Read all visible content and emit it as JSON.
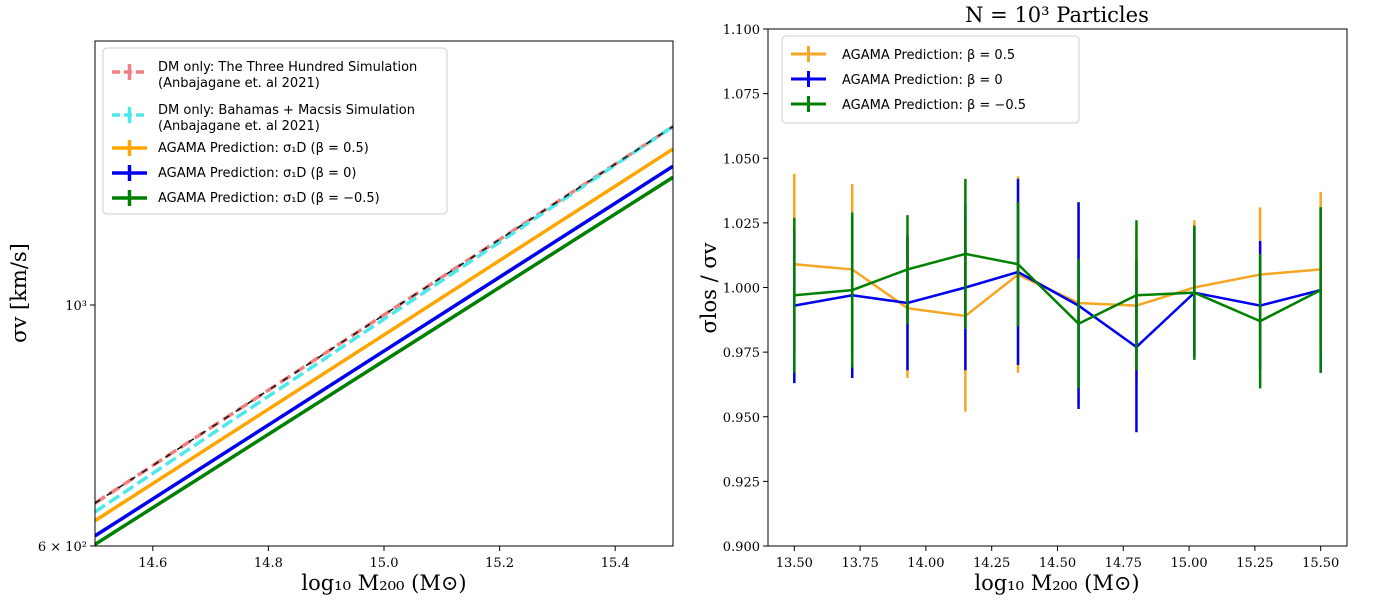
{
  "chart_data": [
    {
      "type": "line",
      "title": "",
      "xlabel": "log₁₀ M₂₀₀ (M⊙)",
      "ylabel": "σv [km/s]",
      "xlim": [
        14.5,
        15.5
      ],
      "ylim": [
        600,
        1750
      ],
      "yscale": "log",
      "xticks": [
        "14.6",
        "14.8",
        "15.0",
        "15.2",
        "15.4"
      ],
      "yticks": [
        {
          "value": 600,
          "label": "6 × 10²"
        },
        {
          "value": 1000,
          "label": "10³"
        }
      ],
      "grid": false,
      "legend_position": "top-left",
      "series": [
        {
          "name": "DM only: The Three Hundred Simulation",
          "name2": "(Anbajagane et. al 2021)",
          "x": [
            14.5,
            15.5
          ],
          "y": [
            657,
            1460
          ],
          "color": "#f08080",
          "style": "dashed"
        },
        {
          "name": "DM only: Bahamas + Macsis Simulation",
          "name2": "(Anbajagane et. al 2021)",
          "x": [
            14.5,
            15.5
          ],
          "y": [
            645,
            1460
          ],
          "color": "#4ee8e8",
          "style": "dashed"
        },
        {
          "name": "AGAMA Prediction: σ₁D (β = 0.5)",
          "x": [
            14.5,
            15.5
          ],
          "y": [
            633,
            1392
          ],
          "color": "#ffa500",
          "style": "solid"
        },
        {
          "name": "AGAMA Prediction: σ₁D (β = 0)",
          "x": [
            14.5,
            15.5
          ],
          "y": [
            613,
            1342
          ],
          "color": "#0000ee",
          "style": "solid"
        },
        {
          "name": "AGAMA Prediction: σ₁D (β = −0.5)",
          "x": [
            14.5,
            15.5
          ],
          "y": [
            602,
            1311
          ],
          "color": "#008000",
          "style": "solid"
        }
      ]
    },
    {
      "type": "line",
      "title": "N = 10³ Particles",
      "xlabel": "log₁₀ M₂₀₀ (M⊙)",
      "ylabel": "σlos / σv",
      "xlim": [
        13.4,
        15.6
      ],
      "ylim": [
        0.9,
        1.1
      ],
      "xticks": [
        "13.50",
        "13.75",
        "14.00",
        "14.25",
        "14.50",
        "14.75",
        "15.00",
        "15.25",
        "15.50"
      ],
      "yticks": [
        "0.900",
        "0.925",
        "0.950",
        "0.975",
        "1.000",
        "1.025",
        "1.050",
        "1.075",
        "1.100"
      ],
      "grid": false,
      "legend_position": "top-left",
      "x": [
        13.5,
        13.72,
        13.93,
        14.15,
        14.35,
        14.58,
        14.8,
        15.02,
        15.27,
        15.5
      ],
      "series": [
        {
          "name": "AGAMA Prediction: β = 0.5",
          "color": "#f5a623",
          "y": [
            1.009,
            1.007,
            0.992,
            0.989,
            1.005,
            0.994,
            0.993,
            1.0,
            1.005,
            1.007
          ],
          "err": [
            0.035,
            0.033,
            0.027,
            0.037,
            0.038,
            0.039,
            0.03,
            0.026,
            0.026,
            0.03
          ]
        },
        {
          "name": "AGAMA Prediction: β = 0",
          "color": "#0000ee",
          "y": [
            0.993,
            0.997,
            0.994,
            1.0,
            1.006,
            0.993,
            0.977,
            0.998,
            0.993,
            0.999
          ],
          "err": [
            0.03,
            0.032,
            0.026,
            0.032,
            0.036,
            0.04,
            0.033,
            0.025,
            0.025,
            0.032
          ]
        },
        {
          "name": "AGAMA Prediction: β = −0.5",
          "color": "#008000",
          "y": [
            0.997,
            0.999,
            1.007,
            1.013,
            1.009,
            0.986,
            0.997,
            0.998,
            0.987,
            0.999
          ],
          "err": [
            0.03,
            0.03,
            0.021,
            0.029,
            0.024,
            0.025,
            0.029,
            0.026,
            0.026,
            0.032
          ]
        }
      ]
    }
  ]
}
